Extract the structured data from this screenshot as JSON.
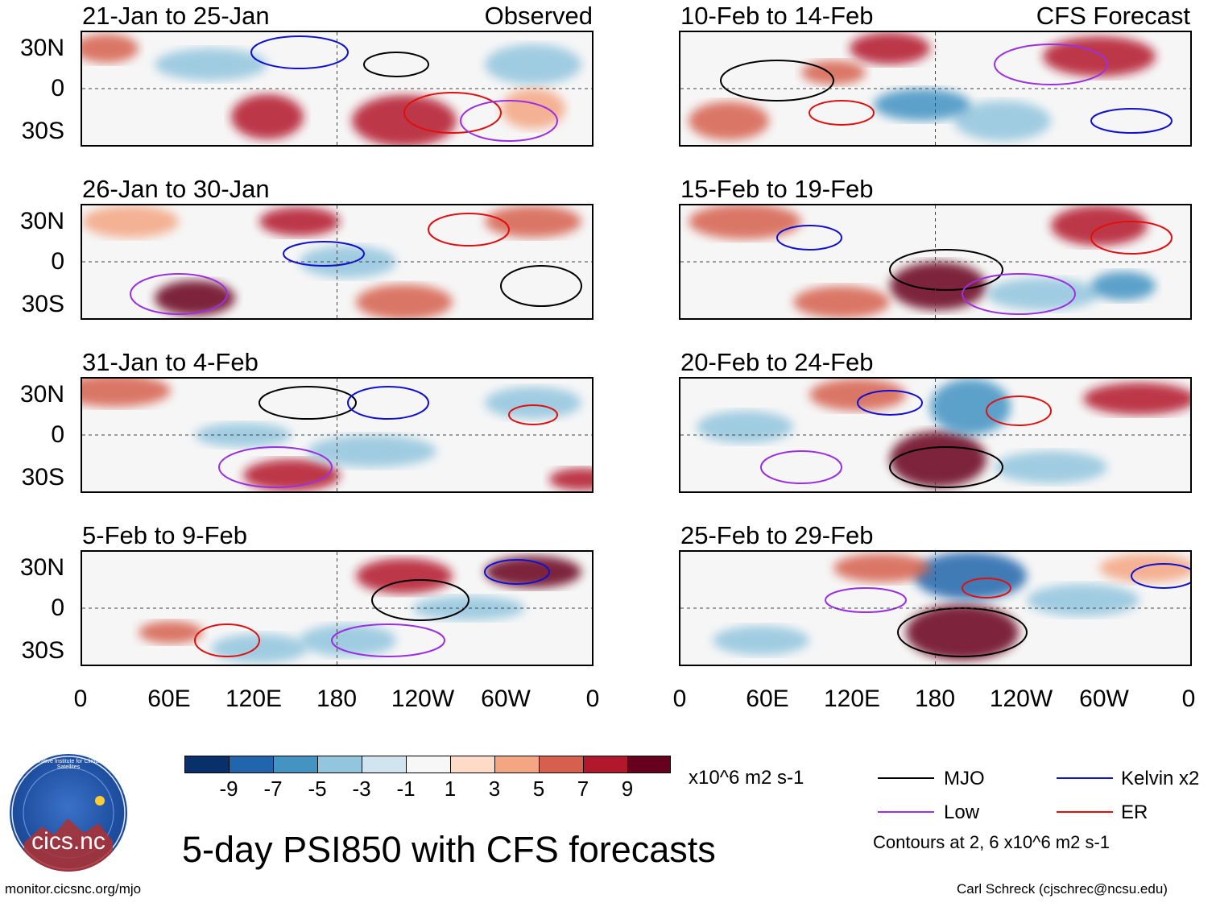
{
  "colors": {
    "mjo": "#000000",
    "kelvin": "#1010d0",
    "low": "#9a30e0",
    "er": "#e01010",
    "palette": [
      "#08306b",
      "#2166ac",
      "#4393c3",
      "#92c5de",
      "#d1e5f0",
      "#f7f7f7",
      "#fddbc7",
      "#f4a582",
      "#d6604d",
      "#b2182b",
      "#67001f"
    ]
  },
  "panels": {
    "observed": [
      {
        "title": "21-Jan to 25-Jan",
        "tag": "Observed"
      },
      {
        "title": "26-Jan to 30-Jan",
        "tag": ""
      },
      {
        "title": "31-Jan to 4-Feb",
        "tag": ""
      },
      {
        "title": "5-Feb to 9-Feb",
        "tag": ""
      }
    ],
    "forecast": [
      {
        "title": "10-Feb to 14-Feb",
        "tag": "CFS Forecast"
      },
      {
        "title": "15-Feb to 19-Feb",
        "tag": ""
      },
      {
        "title": "20-Feb to 24-Feb",
        "tag": ""
      },
      {
        "title": "25-Feb to 29-Feb",
        "tag": ""
      }
    ]
  },
  "lat_labels": [
    "30N",
    "0",
    "30S"
  ],
  "lon_labels": [
    "0",
    "60E",
    "120E",
    "180",
    "120W",
    "60W",
    "0"
  ],
  "colorbar": {
    "labels": [
      "-9",
      "-7",
      "-5",
      "-3",
      "-1",
      "1",
      "3",
      "5",
      "7",
      "9"
    ],
    "units": "x10^6 m2 s-1"
  },
  "legend": {
    "mjo": "MJO",
    "kelvin": "Kelvin x2",
    "low": "Low",
    "er": "ER",
    "note": "Contours at 2, 6 x10^6 m2 s-1"
  },
  "logo": {
    "text": "cics.nc",
    "ring": "Cooperative Institute for Climate and Satellites"
  },
  "main_title": "5-day PSI850 with CFS forecasts",
  "footer": {
    "left": "monitor.cicsnc.org/mjo",
    "right": "Carl Schreck (cjschrec@ncsu.edu)"
  }
}
